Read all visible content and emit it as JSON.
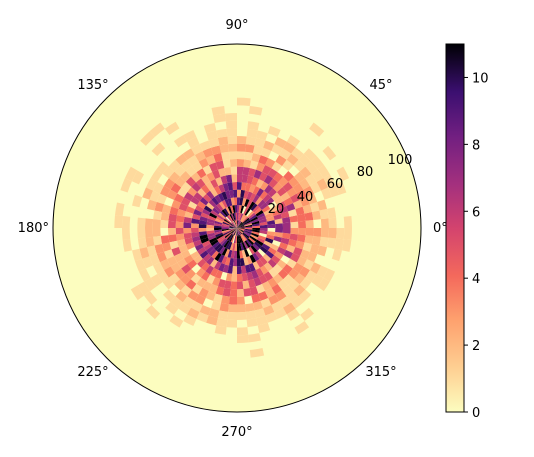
{
  "chart_data": {
    "type": "heatmap",
    "subtype": "polar-histogram",
    "title": "",
    "angular_tick_labels": [
      "0°",
      "45°",
      "90°",
      "135°",
      "180°",
      "225°",
      "270°",
      "315°"
    ],
    "angular_ticks_deg": [
      0,
      45,
      90,
      135,
      180,
      225,
      270,
      315
    ],
    "radial_tick_labels": [
      "20",
      "40",
      "60",
      "80",
      "100"
    ],
    "radial_ticks": [
      20,
      40,
      60,
      80,
      100
    ],
    "radial_range": [
      0,
      120
    ],
    "angular_bins": 60,
    "radial_bins": 24,
    "colormap": "magma_r",
    "colorbar": {
      "range": [
        0,
        11
      ],
      "tick_labels": [
        "0",
        "2",
        "4",
        "6",
        "8",
        "10"
      ],
      "ticks": [
        0,
        2,
        4,
        6,
        8,
        10
      ]
    },
    "grid": false,
    "background_color": "#fcfdbf",
    "counts_description": "per-bin point counts are highest near the origin and fall off with radius; values range 0–11"
  }
}
